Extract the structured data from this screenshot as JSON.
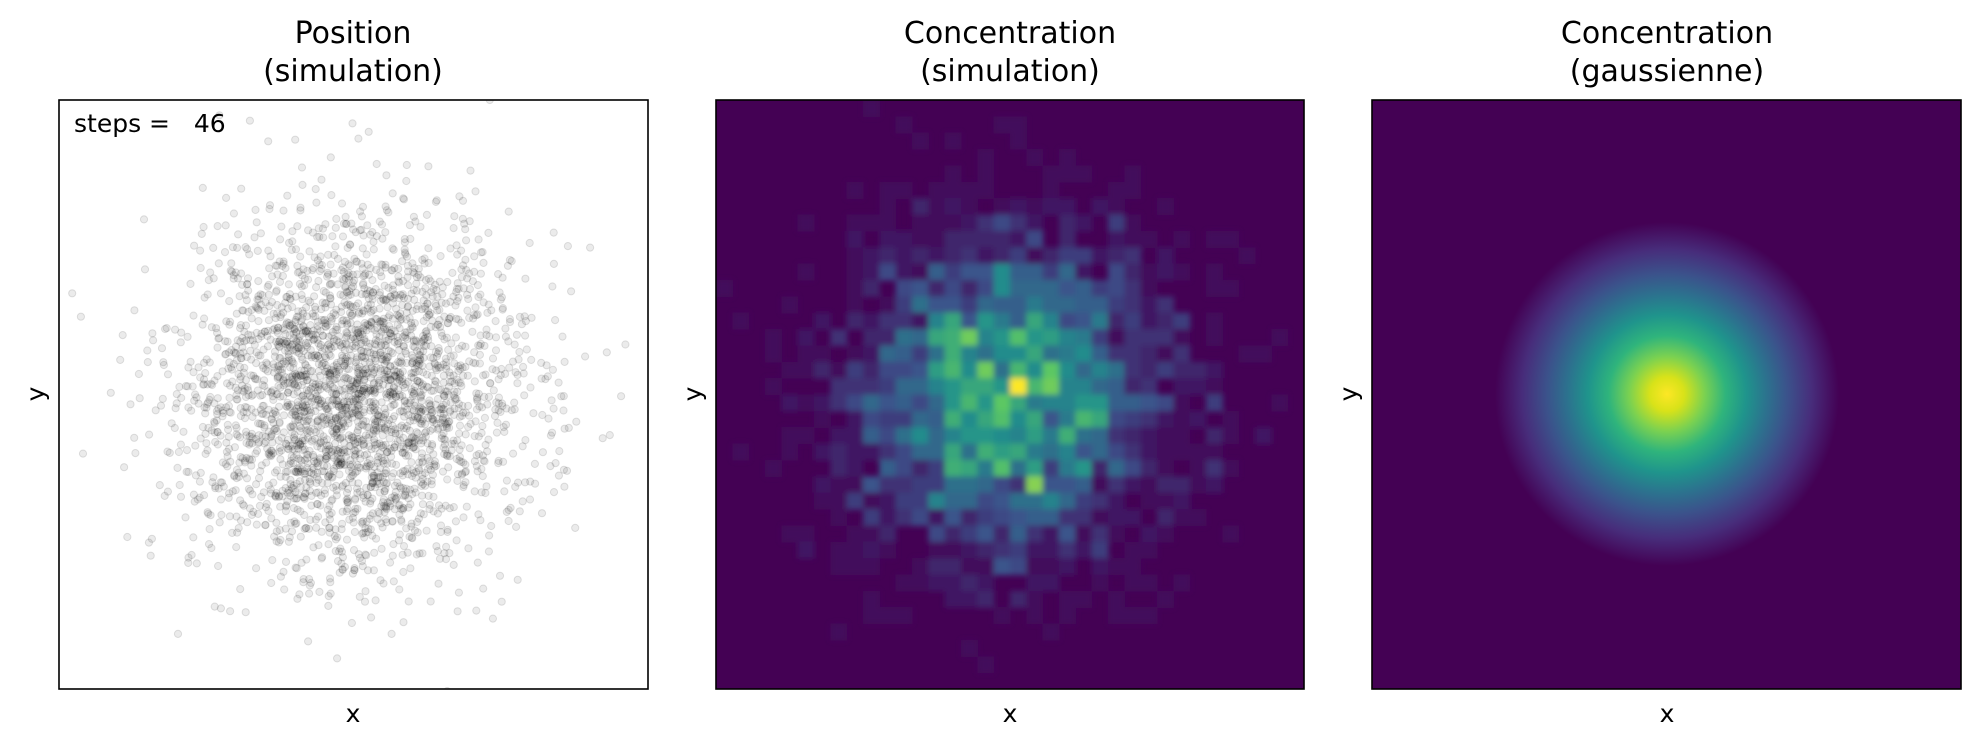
{
  "chart_data": [
    {
      "type": "scatter",
      "title_lines": [
        "Position",
        "(simulation)"
      ],
      "xlabel": "x",
      "ylabel": "y",
      "annotation": "steps =   46",
      "ticks": "none",
      "points": {
        "count": 3000,
        "center": [
          0,
          0
        ],
        "spread": 1.0,
        "color": "#000000",
        "alpha": 0.08
      },
      "limits": [
        -3.5,
        3.5
      ]
    },
    {
      "type": "heatmap",
      "title_lines": [
        "Concentration",
        "(simulation)"
      ],
      "xlabel": "x",
      "ylabel": "y",
      "ticks": "none",
      "colormap": "viridis",
      "colormap_stops": [
        "#440154",
        "#3b528b",
        "#21918c",
        "#5ec962",
        "#fde725"
      ],
      "limits": [
        -3.5,
        3.5
      ]
    },
    {
      "type": "heatmap",
      "title_lines": [
        "Concentration",
        "(gaussienne)"
      ],
      "xlabel": "x",
      "ylabel": "y",
      "ticks": "none",
      "colormap": "viridis",
      "colormap_stops": [
        "#440154",
        "#3b528b",
        "#21918c",
        "#5ec962",
        "#fde725"
      ],
      "limits": [
        -3.5,
        3.5
      ]
    }
  ]
}
